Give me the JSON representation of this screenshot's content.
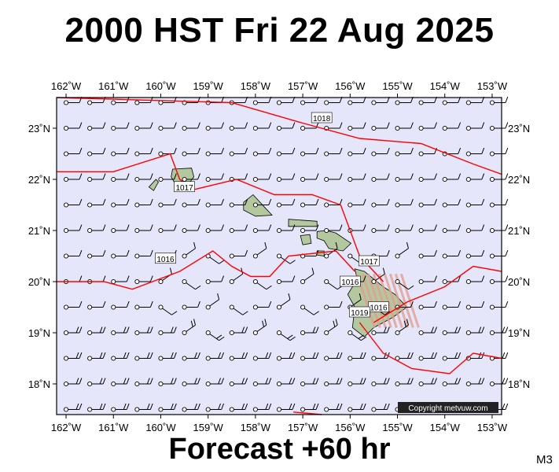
{
  "title": "2000 HST Fri 22 Aug 2025",
  "subtitle": "Forecast +60 hr",
  "model": "M3",
  "copyright": "Copyright metvuw.com",
  "colors": {
    "ocean": "#e6e6fa",
    "land": "#b4c8a0",
    "isobar": "#ff0000",
    "barb": "#000000",
    "rain": "#e0a090"
  },
  "map": {
    "lon_range": [
      -162.2,
      -152.8
    ],
    "lat_range": [
      17.4,
      23.6
    ],
    "lon_ticks": [
      {
        "value": -162,
        "label": "162˚W"
      },
      {
        "value": -161,
        "label": "161˚W"
      },
      {
        "value": -160,
        "label": "160˚W"
      },
      {
        "value": -159,
        "label": "159˚W"
      },
      {
        "value": -158,
        "label": "158˚W"
      },
      {
        "value": -157,
        "label": "157˚W"
      },
      {
        "value": -156,
        "label": "156˚W"
      },
      {
        "value": -155,
        "label": "155˚W"
      },
      {
        "value": -154,
        "label": "154˚W"
      },
      {
        "value": -153,
        "label": "153˚W"
      }
    ],
    "lat_ticks": [
      {
        "value": 23,
        "label": "23˚N"
      },
      {
        "value": 22,
        "label": "22˚N"
      },
      {
        "value": 21,
        "label": "21˚N"
      },
      {
        "value": 20,
        "label": "20˚N"
      },
      {
        "value": 19,
        "label": "19˚N"
      },
      {
        "value": 18,
        "label": "18˚N"
      }
    ],
    "isobars": [
      {
        "label": "1018",
        "label_at": [
          -156.6,
          23.2
        ],
        "points": [
          [
            -162.2,
            23.6
          ],
          [
            -158.5,
            23.5
          ],
          [
            -157.0,
            23.1
          ],
          [
            -155.8,
            22.8
          ],
          [
            -154.5,
            22.7
          ],
          [
            -153.4,
            22.3
          ],
          [
            -152.8,
            22.1
          ]
        ]
      },
      {
        "label": "1017",
        "label_at": [
          -159.5,
          21.85
        ],
        "points": [
          [
            -162.2,
            22.15
          ],
          [
            -161.0,
            22.15
          ],
          [
            -159.8,
            22.5
          ],
          [
            -159.6,
            22.0
          ],
          [
            -159.3,
            21.8
          ],
          [
            -158.4,
            22.0
          ],
          [
            -157.6,
            21.7
          ],
          [
            -156.8,
            21.7
          ],
          [
            -156.2,
            21.5
          ],
          [
            -155.8,
            20.5
          ],
          [
            -155.3,
            20.0
          ]
        ]
      },
      {
        "label": "1016",
        "label_at": [
          -159.9,
          20.45
        ],
        "points": [
          [
            -162.2,
            20.0
          ],
          [
            -161.2,
            20.0
          ],
          [
            -160.6,
            19.85
          ],
          [
            -159.6,
            20.2
          ],
          [
            -158.9,
            20.6
          ],
          [
            -158.5,
            20.3
          ],
          [
            -158.1,
            20.1
          ],
          [
            -157.7,
            20.1
          ],
          [
            -157.3,
            20.5
          ],
          [
            -156.3,
            20.6
          ],
          [
            -155.9,
            20.2
          ]
        ]
      },
      {
        "label": "",
        "label_at": [
          0,
          0
        ],
        "points": [
          [
            -155.5,
            19.2
          ],
          [
            -154.8,
            19.6
          ],
          [
            -154.0,
            19.9
          ],
          [
            -153.4,
            20.3
          ],
          [
            -152.8,
            20.2
          ]
        ]
      },
      {
        "label": "",
        "label_at": [
          0,
          0
        ],
        "points": [
          [
            -155.8,
            19.2
          ],
          [
            -155.3,
            18.6
          ],
          [
            -154.7,
            18.3
          ],
          [
            -153.9,
            18.2
          ],
          [
            -153.4,
            18.6
          ],
          [
            -152.8,
            18.5
          ]
        ]
      },
      {
        "label": "",
        "label_at": [
          0,
          0
        ],
        "points": [
          [
            -157.2,
            17.45
          ],
          [
            -156.6,
            17.4
          ]
        ]
      }
    ],
    "big_island_labels": [
      {
        "text": "1016",
        "at": [
          -156.0,
          20.0
        ]
      },
      {
        "text": "1017",
        "at": [
          -155.6,
          20.4
        ]
      },
      {
        "text": "1016",
        "at": [
          -155.4,
          19.5
        ]
      },
      {
        "text": "1019",
        "at": [
          -155.8,
          19.4
        ]
      }
    ],
    "islands": [
      {
        "name": "Niihau",
        "points": [
          [
            -160.25,
            21.85
          ],
          [
            -160.1,
            22.0
          ],
          [
            -160.05,
            21.95
          ],
          [
            -160.15,
            21.78
          ]
        ]
      },
      {
        "name": "Kauai",
        "points": [
          [
            -159.75,
            22.2
          ],
          [
            -159.35,
            22.22
          ],
          [
            -159.3,
            22.05
          ],
          [
            -159.42,
            21.9
          ],
          [
            -159.7,
            21.92
          ],
          [
            -159.78,
            22.05
          ]
        ]
      },
      {
        "name": "Oahu",
        "points": [
          [
            -158.25,
            21.55
          ],
          [
            -158.05,
            21.7
          ],
          [
            -157.8,
            21.45
          ],
          [
            -157.65,
            21.3
          ],
          [
            -158.0,
            21.28
          ],
          [
            -158.25,
            21.4
          ]
        ]
      },
      {
        "name": "Molokai",
        "points": [
          [
            -157.3,
            21.22
          ],
          [
            -156.7,
            21.18
          ],
          [
            -156.7,
            21.08
          ],
          [
            -157.3,
            21.08
          ]
        ]
      },
      {
        "name": "Lanai",
        "points": [
          [
            -157.05,
            20.9
          ],
          [
            -156.85,
            20.92
          ],
          [
            -156.82,
            20.75
          ],
          [
            -157.0,
            20.72
          ]
        ]
      },
      {
        "name": "Maui",
        "points": [
          [
            -156.7,
            20.98
          ],
          [
            -156.5,
            21.0
          ],
          [
            -156.3,
            20.95
          ],
          [
            -155.98,
            20.75
          ],
          [
            -156.15,
            20.6
          ],
          [
            -156.45,
            20.65
          ],
          [
            -156.55,
            20.8
          ],
          [
            -156.7,
            20.85
          ]
        ]
      },
      {
        "name": "Kahoolawe",
        "points": [
          [
            -156.7,
            20.6
          ],
          [
            -156.55,
            20.6
          ],
          [
            -156.55,
            20.5
          ],
          [
            -156.7,
            20.52
          ]
        ]
      },
      {
        "name": "Hawaii",
        "points": [
          [
            -155.9,
            20.25
          ],
          [
            -155.7,
            20.2
          ],
          [
            -155.3,
            19.9
          ],
          [
            -155.05,
            19.75
          ],
          [
            -154.8,
            19.5
          ],
          [
            -155.1,
            19.3
          ],
          [
            -155.5,
            19.1
          ],
          [
            -155.7,
            18.92
          ],
          [
            -155.95,
            19.1
          ],
          [
            -155.9,
            19.5
          ],
          [
            -156.05,
            19.75
          ],
          [
            -155.85,
            20.05
          ]
        ]
      }
    ],
    "barb_grid": {
      "lons": [
        -162,
        -161.5,
        -161,
        -160.5,
        -160,
        -159.5,
        -159,
        -158.5,
        -158,
        -157.5,
        -157,
        -156.5,
        -156,
        -155.5,
        -155,
        -154.5,
        -154,
        -153.5,
        -153
      ],
      "lats": [
        23.5,
        23,
        22.5,
        22,
        21.5,
        21,
        20.5,
        20,
        19.5,
        19,
        18.5,
        18,
        17.5
      ]
    }
  }
}
